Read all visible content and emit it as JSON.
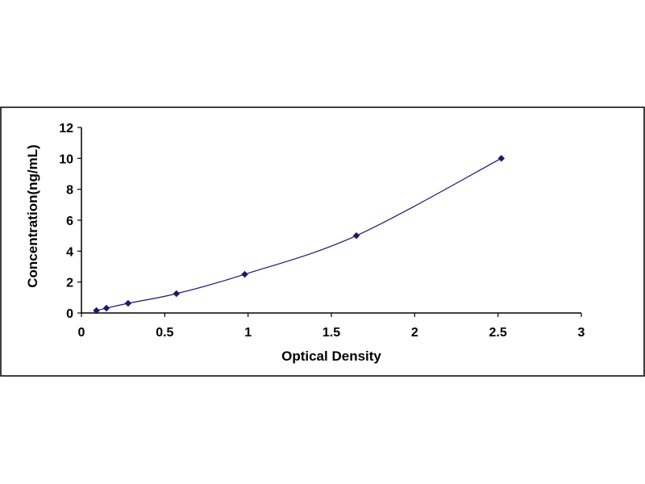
{
  "chart_data": {
    "type": "scatter",
    "title": "",
    "xlabel": "Optical Density",
    "ylabel": "Concentration(ng/mL)",
    "xlim": [
      0,
      3
    ],
    "ylim": [
      0,
      12
    ],
    "x_ticks": [
      0,
      0.5,
      1,
      1.5,
      2,
      2.5,
      3
    ],
    "y_ticks": [
      0,
      2,
      4,
      6,
      8,
      10,
      12
    ],
    "x_tick_labels": [
      "0",
      "0.5",
      "1",
      "1.5",
      "2",
      "2.5",
      "3"
    ],
    "y_tick_labels": [
      "0",
      "2",
      "4",
      "6",
      "8",
      "10",
      "12"
    ],
    "grid": false,
    "legend": "none",
    "series": [
      {
        "marker": "diamond",
        "color": "#1a1a6e",
        "trendline": "smooth",
        "x": [
          0.09,
          0.15,
          0.28,
          0.57,
          0.98,
          1.65,
          2.52
        ],
        "y": [
          0.156,
          0.312,
          0.625,
          1.25,
          2.5,
          5,
          10
        ]
      }
    ]
  },
  "colors": {
    "frame": "#000000",
    "axis": "#000000",
    "curve": "#1a1a6e",
    "marker": "#1a1a6e"
  }
}
